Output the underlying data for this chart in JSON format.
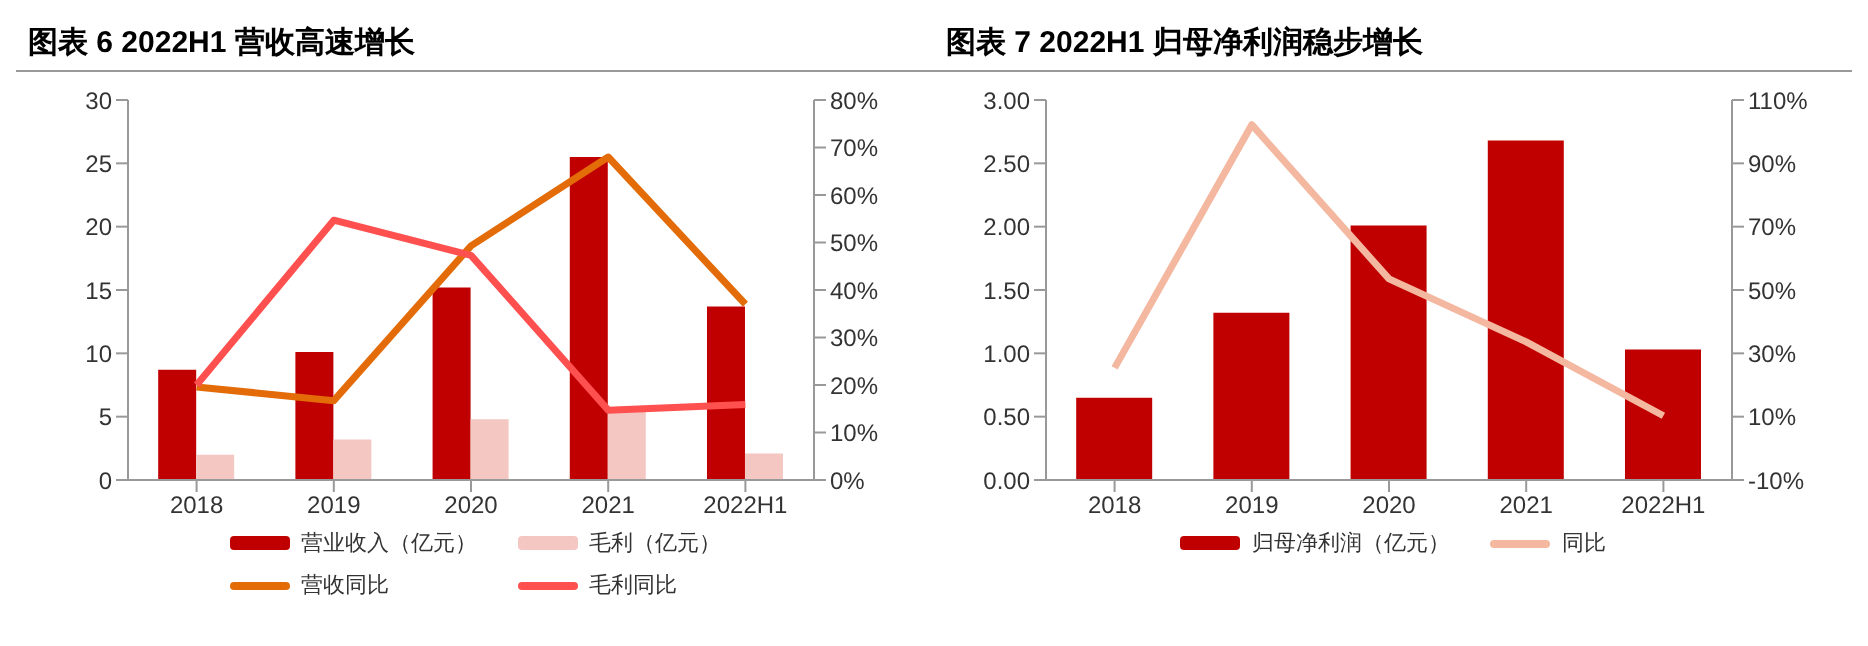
{
  "chart_data": [
    {
      "type": "bar",
      "title": "图表 6 2022H1 营收高速增长",
      "categories": [
        "2018",
        "2019",
        "2020",
        "2021",
        "2022H1"
      ],
      "series": [
        {
          "name": "营业收入（亿元）",
          "color": "#c00000",
          "values": [
            8.7,
            10.1,
            15.2,
            25.5,
            13.7
          ]
        },
        {
          "name": "毛利（亿元）",
          "color": "#f4c7c3",
          "values": [
            2.0,
            3.2,
            4.8,
            5.5,
            2.1
          ]
        },
        {
          "name": "营收同比",
          "type": "line",
          "axis": "y2",
          "color": "#e36c09",
          "values": [
            19.6,
            16.7,
            49.3,
            68,
            37
          ]
        },
        {
          "name": "毛利同比",
          "type": "line",
          "axis": "y2",
          "color": "#ff5050",
          "values": [
            20,
            54.7,
            47.3,
            14.7,
            15.9
          ]
        }
      ],
      "ylim": [
        0,
        30
      ],
      "yticks": [
        0,
        5,
        10,
        15,
        20,
        25,
        30
      ],
      "y2lim": [
        0,
        80
      ],
      "y2ticks": [
        {
          "value": 0,
          "label": "0%"
        },
        {
          "value": 10,
          "label": "10%"
        },
        {
          "value": 20,
          "label": "20%"
        },
        {
          "value": 30,
          "label": "30%"
        },
        {
          "value": 40,
          "label": "40%"
        },
        {
          "value": 50,
          "label": "50%"
        },
        {
          "value": 60,
          "label": "60%"
        },
        {
          "value": 70,
          "label": "70%"
        },
        {
          "value": 80,
          "label": "80%"
        }
      ],
      "legend": "bottom",
      "grid": false,
      "marker": "none"
    },
    {
      "type": "bar",
      "title": "图表 7 2022H1 归母净利润稳步增长",
      "categories": [
        "2018",
        "2019",
        "2020",
        "2021",
        "2022H1"
      ],
      "series": [
        {
          "name": "归母净利润（亿元）",
          "color": "#c00000",
          "values": [
            0.65,
            1.32,
            2.01,
            2.68,
            1.03
          ]
        },
        {
          "name": "同比",
          "type": "line",
          "axis": "y2",
          "color": "#f4b8a0",
          "values": [
            25.4,
            102.2,
            53.5,
            33.6,
            10.3
          ]
        }
      ],
      "ylim": [
        0,
        3
      ],
      "yticks": [
        {
          "value": 0,
          "label": "0.00"
        },
        {
          "value": 0.5,
          "label": "0.50"
        },
        {
          "value": 1,
          "label": "1.00"
        },
        {
          "value": 1.5,
          "label": "1.50"
        },
        {
          "value": 2,
          "label": "2.00"
        },
        {
          "value": 2.5,
          "label": "2.50"
        },
        {
          "value": 3,
          "label": "3.00"
        }
      ],
      "y2lim": [
        -10,
        110
      ],
      "y2ticks": [
        {
          "value": -10,
          "label": "-10%"
        },
        {
          "value": 10,
          "label": "10%"
        },
        {
          "value": 30,
          "label": "30%"
        },
        {
          "value": 50,
          "label": "50%"
        },
        {
          "value": 70,
          "label": "70%"
        },
        {
          "value": 90,
          "label": "90%"
        },
        {
          "value": 110,
          "label": "110%"
        }
      ],
      "legend": "bottom",
      "grid": false,
      "marker": "none"
    }
  ]
}
